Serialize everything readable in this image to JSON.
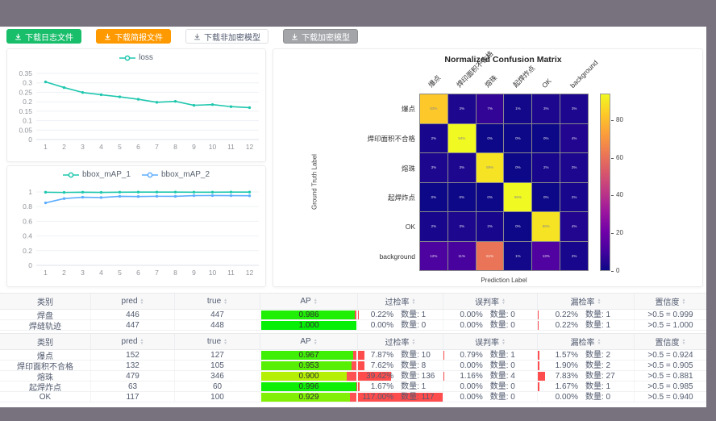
{
  "page": {
    "frame_color": "#78717e",
    "content_color": "#ffffff"
  },
  "toolbar": {
    "buttons": [
      {
        "label": "下载日志文件",
        "style": "green",
        "color": "#19be6b"
      },
      {
        "label": "下载简报文件",
        "style": "orange",
        "color": "#ff9900"
      },
      {
        "label": "下载非加密模型",
        "style": "white",
        "color": "#ffffff"
      },
      {
        "label": "下载加密模型",
        "style": "gray",
        "color": "#a3a5a9"
      }
    ]
  },
  "chart_data": [
    {
      "type": "line",
      "name": "loss-chart",
      "x": [
        1,
        2,
        3,
        4,
        5,
        6,
        7,
        8,
        9,
        10,
        11,
        12
      ],
      "series": [
        {
          "name": "loss",
          "color": "#1fc7ae",
          "values": [
            0.305,
            0.275,
            0.249,
            0.237,
            0.226,
            0.213,
            0.197,
            0.202,
            0.181,
            0.185,
            0.174,
            0.169
          ]
        }
      ],
      "ylim": [
        0,
        0.35
      ],
      "yticks": [
        "0",
        "0.05",
        "0.1",
        "0.15",
        "0.2",
        "0.25",
        "0.3",
        "0.35"
      ],
      "grid": true,
      "legend_position": "top"
    },
    {
      "type": "line",
      "name": "bbox-map-chart",
      "x": [
        1,
        2,
        3,
        4,
        5,
        6,
        7,
        8,
        9,
        10,
        11,
        12
      ],
      "series": [
        {
          "name": "bbox_mAP_1",
          "color": "#1fc7ae",
          "values": [
            0.996,
            0.993,
            0.997,
            0.994,
            0.997,
            0.998,
            0.998,
            0.998,
            0.997,
            0.997,
            0.998,
            0.998
          ]
        },
        {
          "name": "bbox_mAP_2",
          "color": "#5cadff",
          "values": [
            0.851,
            0.91,
            0.928,
            0.924,
            0.94,
            0.937,
            0.941,
            0.94,
            0.95,
            0.951,
            0.95,
            0.948
          ]
        }
      ],
      "ylim": [
        0,
        1
      ],
      "yticks": [
        "0",
        "0.2",
        "0.4",
        "0.6",
        "0.8",
        "1"
      ],
      "grid": true,
      "legend_position": "top"
    },
    {
      "type": "heatmap",
      "name": "confusion-matrix",
      "title": "Normalized Confusion Matrix",
      "xlabel": "Prediction Label",
      "ylabel": "Ground Truth Label",
      "labels": [
        "爆点",
        "焊印面积不合格",
        "熔珠",
        "起焊炸点",
        "OK",
        "background"
      ],
      "unit": "%",
      "matrix": [
        [
          83,
          3,
          7,
          1,
          3,
          3
        ],
        [
          2,
          94,
          0,
          0,
          0,
          4
        ],
        [
          3,
          3,
          89,
          0,
          2,
          3
        ],
        [
          0,
          0,
          0,
          98,
          0,
          2
        ],
        [
          2,
          3,
          2,
          0,
          89,
          4
        ],
        [
          12,
          11,
          61,
          1,
          13,
          2
        ]
      ],
      "colormap": "plasma",
      "vmax": 94,
      "colorbar_ticks": [
        0,
        20,
        40,
        60,
        80
      ]
    }
  ],
  "tables": [
    {
      "headers": [
        {
          "label": "类别",
          "sortable": false
        },
        {
          "label": "pred",
          "sortable": true
        },
        {
          "label": "true",
          "sortable": true
        },
        {
          "label": "AP",
          "sortable": true
        },
        {
          "label": "过检率",
          "sortable": true
        },
        {
          "label": "误判率",
          "sortable": true
        },
        {
          "label": "漏检率",
          "sortable": true
        },
        {
          "label": "置信度",
          "sortable": true
        }
      ],
      "rows": [
        {
          "class": "焊盘",
          "pred": "446",
          "true": "447",
          "ap": "0.986",
          "over_pct": "0.22%",
          "over_cnt": "数量: 1",
          "over_val": 0.22,
          "mis_pct": "0.00%",
          "mis_cnt": "数量: 0",
          "mis_val": 0,
          "miss_pct": "0.22%",
          "miss_cnt": "数量: 1",
          "miss_val": 0.22,
          "conf": ">0.5 = 0.999"
        },
        {
          "class": "焊缝轨迹",
          "pred": "447",
          "true": "448",
          "ap": "1.000",
          "over_pct": "0.00%",
          "over_cnt": "数量: 0",
          "over_val": 0,
          "mis_pct": "0.00%",
          "mis_cnt": "数量: 0",
          "mis_val": 0,
          "miss_pct": "0.22%",
          "miss_cnt": "数量: 1",
          "miss_val": 0.22,
          "conf": ">0.5 = 1.000"
        }
      ]
    },
    {
      "headers": [
        {
          "label": "类别",
          "sortable": false
        },
        {
          "label": "pred",
          "sortable": true
        },
        {
          "label": "true",
          "sortable": true
        },
        {
          "label": "AP",
          "sortable": true
        },
        {
          "label": "过检率",
          "sortable": true
        },
        {
          "label": "误判率",
          "sortable": true
        },
        {
          "label": "漏检率",
          "sortable": true
        },
        {
          "label": "置信度",
          "sortable": true
        }
      ],
      "rows": [
        {
          "class": "爆点",
          "pred": "152",
          "true": "127",
          "ap": "0.967",
          "over_pct": "7.87%",
          "over_cnt": "数量: 10",
          "over_val": 7.87,
          "mis_pct": "0.79%",
          "mis_cnt": "数量: 1",
          "mis_val": 0.79,
          "miss_pct": "1.57%",
          "miss_cnt": "数量: 2",
          "miss_val": 1.57,
          "conf": ">0.5 = 0.924"
        },
        {
          "class": "焊印面积不合格",
          "pred": "132",
          "true": "105",
          "ap": "0.953",
          "over_pct": "7.62%",
          "over_cnt": "数量: 8",
          "over_val": 7.62,
          "mis_pct": "0.00%",
          "mis_cnt": "数量: 0",
          "mis_val": 0,
          "miss_pct": "1.90%",
          "miss_cnt": "数量: 2",
          "miss_val": 1.9,
          "conf": ">0.5 = 0.905"
        },
        {
          "class": "熔珠",
          "pred": "479",
          "true": "346",
          "ap": "0.900",
          "over_pct": "39.42%",
          "over_cnt": "数量: 136",
          "over_val": 39.42,
          "mis_pct": "1.16%",
          "mis_cnt": "数量: 4",
          "mis_val": 1.16,
          "miss_pct": "7.83%",
          "miss_cnt": "数量: 27",
          "miss_val": 7.83,
          "conf": ">0.5 = 0.881"
        },
        {
          "class": "起焊炸点",
          "pred": "63",
          "true": "60",
          "ap": "0.996",
          "over_pct": "1.67%",
          "over_cnt": "数量: 1",
          "over_val": 1.67,
          "mis_pct": "0.00%",
          "mis_cnt": "数量: 0",
          "mis_val": 0,
          "miss_pct": "1.67%",
          "miss_cnt": "数量: 1",
          "miss_val": 1.67,
          "conf": ">0.5 = 0.985"
        },
        {
          "class": "OK",
          "pred": "117",
          "true": "100",
          "ap": "0.929",
          "over_pct": "117.00%",
          "over_cnt": "数量: 117",
          "over_val": 117,
          "mis_pct": "0.00%",
          "mis_cnt": "数量: 0",
          "mis_val": 0,
          "miss_pct": "0.00%",
          "miss_cnt": "数量: 0",
          "miss_val": 0,
          "conf": ">0.5 = 0.940"
        }
      ]
    }
  ]
}
